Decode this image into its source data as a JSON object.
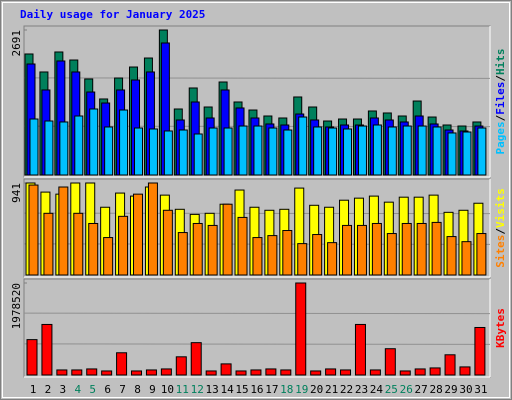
{
  "chart_data": {
    "type": "bar",
    "title": "Daily usage for January 2025",
    "categories": [
      "1",
      "2",
      "3",
      "4",
      "5",
      "6",
      "7",
      "8",
      "9",
      "10",
      "11",
      "12",
      "13",
      "14",
      "15",
      "16",
      "17",
      "18",
      "19",
      "20",
      "21",
      "22",
      "23",
      "24",
      "25",
      "26",
      "27",
      "28",
      "29",
      "30",
      "31"
    ],
    "category_colors": [
      "#000000",
      "#000000",
      "#000000",
      "#00805c",
      "#00805c",
      "#000000",
      "#000000",
      "#000000",
      "#000000",
      "#000000",
      "#00805c",
      "#00805c",
      "#000000",
      "#000000",
      "#000000",
      "#000000",
      "#000000",
      "#00805c",
      "#00805c",
      "#000000",
      "#000000",
      "#000000",
      "#000000",
      "#000000",
      "#00805c",
      "#00805c",
      "#000000",
      "#000000",
      "#000000",
      "#000000",
      "#000000"
    ],
    "legend_separator": "/",
    "panels": [
      {
        "ylim": [
          0,
          2691
        ],
        "yticks": [
          2691
        ],
        "series": [
          {
            "name": "Hits",
            "color": "#00805c",
            "values": [
              2246,
              1912,
              2283,
              2134,
              1782,
              1411,
              1800,
              2004,
              2171,
              2691,
              1225,
              1615,
              1262,
              1726,
              1355,
              1206,
              1095,
              1058,
              1448,
              1262,
              1002,
              1039,
              1039,
              1188,
              1151,
              1095,
              1373,
              1076,
              928,
              909,
              984
            ]
          },
          {
            "name": "Files",
            "color": "#0000ff",
            "values": [
              2060,
              1578,
              2116,
              1912,
              1540,
              1336,
              1578,
              1763,
              1912,
              2450,
              1021,
              1355,
              1058,
              1578,
              1244,
              1058,
              947,
              928,
              1132,
              1021,
              891,
              928,
              928,
              1058,
              1021,
              984,
              1095,
              947,
              835,
              817,
              909
            ]
          },
          {
            "name": "Pages",
            "color": "#00c0ff",
            "values": [
              1039,
              1002,
              984,
              1095,
              1225,
              891,
              1206,
              872,
              854,
              817,
              835,
              761,
              872,
              872,
              909,
              909,
              872,
              835,
              1076,
              891,
              872,
              854,
              909,
              928,
              891,
              909,
              909,
              891,
              780,
              798,
              872
            ]
          }
        ]
      },
      {
        "ylim": [
          0,
          941
        ],
        "yticks": [
          941
        ],
        "series": [
          {
            "name": "Visits",
            "color": "#ffff00",
            "values": [
              941,
              848,
              827,
              941,
              941,
              693,
              838,
              807,
              900,
              817,
              672,
              620,
              631,
              724,
              869,
              693,
              662,
              672,
              889,
              713,
              693,
              765,
              786,
              807,
              745,
              796,
              796,
              817,
              641,
              662,
              734
            ]
          },
          {
            "name": "Sites",
            "color": "#ff8000",
            "values": [
              920,
              631,
              900,
              631,
              527,
              383,
              600,
              827,
              941,
              662,
              434,
              527,
              507,
              724,
              589,
              383,
              403,
              455,
              321,
              414,
              331,
              507,
              507,
              527,
              424,
              527,
              527,
              538,
              393,
              341,
              424
            ]
          }
        ]
      },
      {
        "ylim": [
          0,
          1978520
        ],
        "yticks": [
          1978520
        ],
        "series": [
          {
            "name": "KBytes",
            "color": "#ff0000",
            "values": [
              760970,
              1087100,
              108710,
              108710,
              130450,
              86970,
              478320,
              86970,
              108710,
              130450,
              391360,
              695740,
              86970,
              239160,
              86970,
              108710,
              130450,
              108710,
              1978520,
              86970,
              130450,
              108710,
              1087100,
              108710,
              565290,
              86970,
              130450,
              152190,
              434840,
              173940,
              1021870
            ]
          }
        ]
      }
    ]
  }
}
